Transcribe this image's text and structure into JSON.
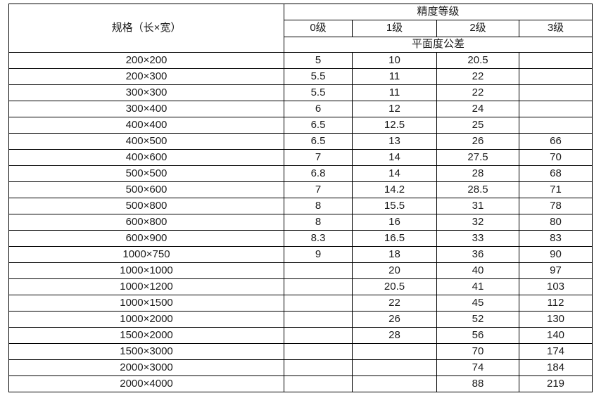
{
  "colors": {
    "border": "#000000",
    "background": "#ffffff",
    "text": "#1a1a1a"
  },
  "table": {
    "spec_header": "规格（长×宽）",
    "precision_header": "精度等级",
    "grade_headers": [
      "0级",
      "1级",
      "2级",
      "3级"
    ],
    "tolerance_header": "平面度公差",
    "rows": [
      {
        "spec": "200×200",
        "values": [
          "5",
          "10",
          "20.5",
          ""
        ]
      },
      {
        "spec": "200×300",
        "values": [
          "5.5",
          "11",
          "22",
          ""
        ]
      },
      {
        "spec": "300×300",
        "values": [
          "5.5",
          "11",
          "22",
          ""
        ]
      },
      {
        "spec": "300×400",
        "values": [
          "6",
          "12",
          "24",
          ""
        ]
      },
      {
        "spec": "400×400",
        "values": [
          "6.5",
          "12.5",
          "25",
          ""
        ]
      },
      {
        "spec": "400×500",
        "values": [
          "6.5",
          "13",
          "26",
          "66"
        ]
      },
      {
        "spec": "400×600",
        "values": [
          "7",
          "14",
          "27.5",
          "70"
        ]
      },
      {
        "spec": "500×500",
        "values": [
          "6.8",
          "14",
          "28",
          "68"
        ]
      },
      {
        "spec": "500×600",
        "values": [
          "7",
          "14.2",
          "28.5",
          "71"
        ]
      },
      {
        "spec": "500×800",
        "values": [
          "8",
          "15.5",
          "31",
          "78"
        ]
      },
      {
        "spec": "600×800",
        "values": [
          "8",
          "16",
          "32",
          "80"
        ]
      },
      {
        "spec": "600×900",
        "values": [
          "8.3",
          "16.5",
          "33",
          "83"
        ]
      },
      {
        "spec": "1000×750",
        "values": [
          "9",
          "18",
          "36",
          "90"
        ]
      },
      {
        "spec": "1000×1000",
        "values": [
          "",
          "20",
          "40",
          "97"
        ]
      },
      {
        "spec": "1000×1200",
        "values": [
          "",
          "20.5",
          "41",
          "103"
        ]
      },
      {
        "spec": "1000×1500",
        "values": [
          "",
          "22",
          "45",
          "112"
        ]
      },
      {
        "spec": "1000×2000",
        "values": [
          "",
          "26",
          "52",
          "130"
        ]
      },
      {
        "spec": "1500×2000",
        "values": [
          "",
          "28",
          "56",
          "140"
        ]
      },
      {
        "spec": "1500×3000",
        "values": [
          "",
          "",
          "70",
          "174"
        ]
      },
      {
        "spec": "2000×3000",
        "values": [
          "",
          "",
          "74",
          "184"
        ]
      },
      {
        "spec": "2000×4000",
        "values": [
          "",
          "",
          "88",
          "219"
        ]
      }
    ]
  }
}
